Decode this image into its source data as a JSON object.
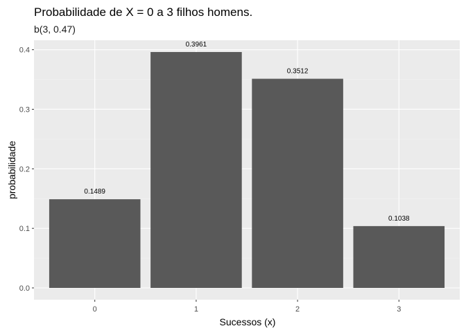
{
  "chart_data": {
    "type": "bar",
    "title": "Probabilidade de X = 0 a 3 filhos homens.",
    "subtitle": "b(3, 0.47)",
    "xlabel": "Sucessos (x)",
    "ylabel": "probabilidade",
    "categories": [
      "0",
      "1",
      "2",
      "3"
    ],
    "values": [
      0.1489,
      0.3961,
      0.3512,
      0.1038
    ],
    "data_labels": [
      "0.1489",
      "0.3961",
      "0.3512",
      "0.1038"
    ],
    "yticks": [
      0.0,
      0.1,
      0.2,
      0.3,
      0.4
    ],
    "ytick_labels": [
      "0.0",
      "0.1",
      "0.2",
      "0.3",
      "0.4"
    ],
    "ylim": [
      -0.0198,
      0.4159
    ],
    "grid": true,
    "colors": {
      "bar": "#595959",
      "panel_background": "#ebebeb",
      "grid_major": "#ffffff",
      "grid_minor": "#f4f4f4"
    }
  }
}
